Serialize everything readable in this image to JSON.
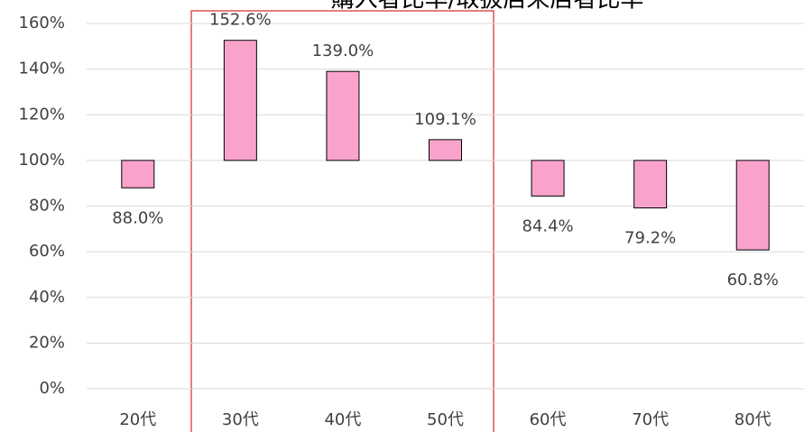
{
  "chart_data": {
    "type": "bar",
    "title": "購入者比率/取扱店来店者比率",
    "categories": [
      "20代",
      "30代",
      "40代",
      "50代",
      "60代",
      "70代",
      "80代"
    ],
    "values": [
      88.0,
      152.6,
      139.0,
      109.1,
      84.4,
      79.2,
      60.8
    ],
    "value_labels": [
      "88.0%",
      "152.6%",
      "139.0%",
      "109.1%",
      "84.4%",
      "79.2%",
      "60.8%"
    ],
    "color": "#f9a3cc",
    "bar_base": 100,
    "ylim": [
      0,
      160
    ],
    "yticks": [
      {
        "value": 0,
        "label": "0%"
      },
      {
        "value": 20,
        "label": "20%"
      },
      {
        "value": 40,
        "label": "40%"
      },
      {
        "value": 60,
        "label": "60%"
      },
      {
        "value": 80,
        "label": "80%"
      },
      {
        "value": 100,
        "label": "100%"
      },
      {
        "value": 120,
        "label": "120%"
      },
      {
        "value": 140,
        "label": "140%"
      },
      {
        "value": 160,
        "label": "160%"
      }
    ],
    "grid": true
  }
}
